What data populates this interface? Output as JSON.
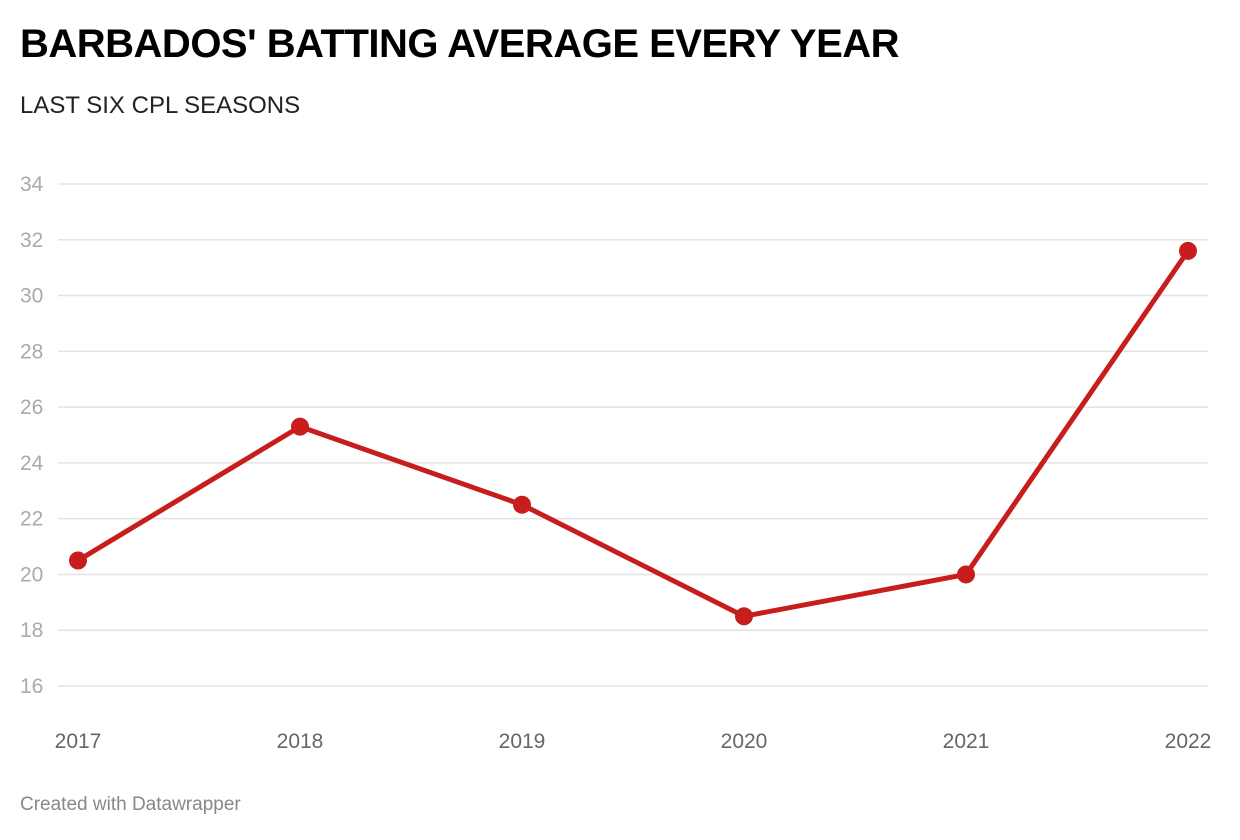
{
  "chart_data": {
    "type": "line",
    "title": "BARBADOS' BATTING AVERAGE EVERY YEAR",
    "subtitle": "LAST SIX CPL SEASONS",
    "xlabel": "",
    "ylabel": "",
    "categories": [
      "2017",
      "2018",
      "2019",
      "2020",
      "2021",
      "2022"
    ],
    "series": [
      {
        "name": "Batting average",
        "values": [
          20.5,
          25.3,
          22.5,
          18.5,
          20.0,
          31.6
        ],
        "color": "#c71e1d"
      }
    ],
    "yticks": [
      16,
      18,
      20,
      22,
      24,
      26,
      28,
      30,
      32,
      34
    ],
    "ylim": [
      15,
      34
    ],
    "grid": true
  },
  "footer": "Created with Datawrapper"
}
